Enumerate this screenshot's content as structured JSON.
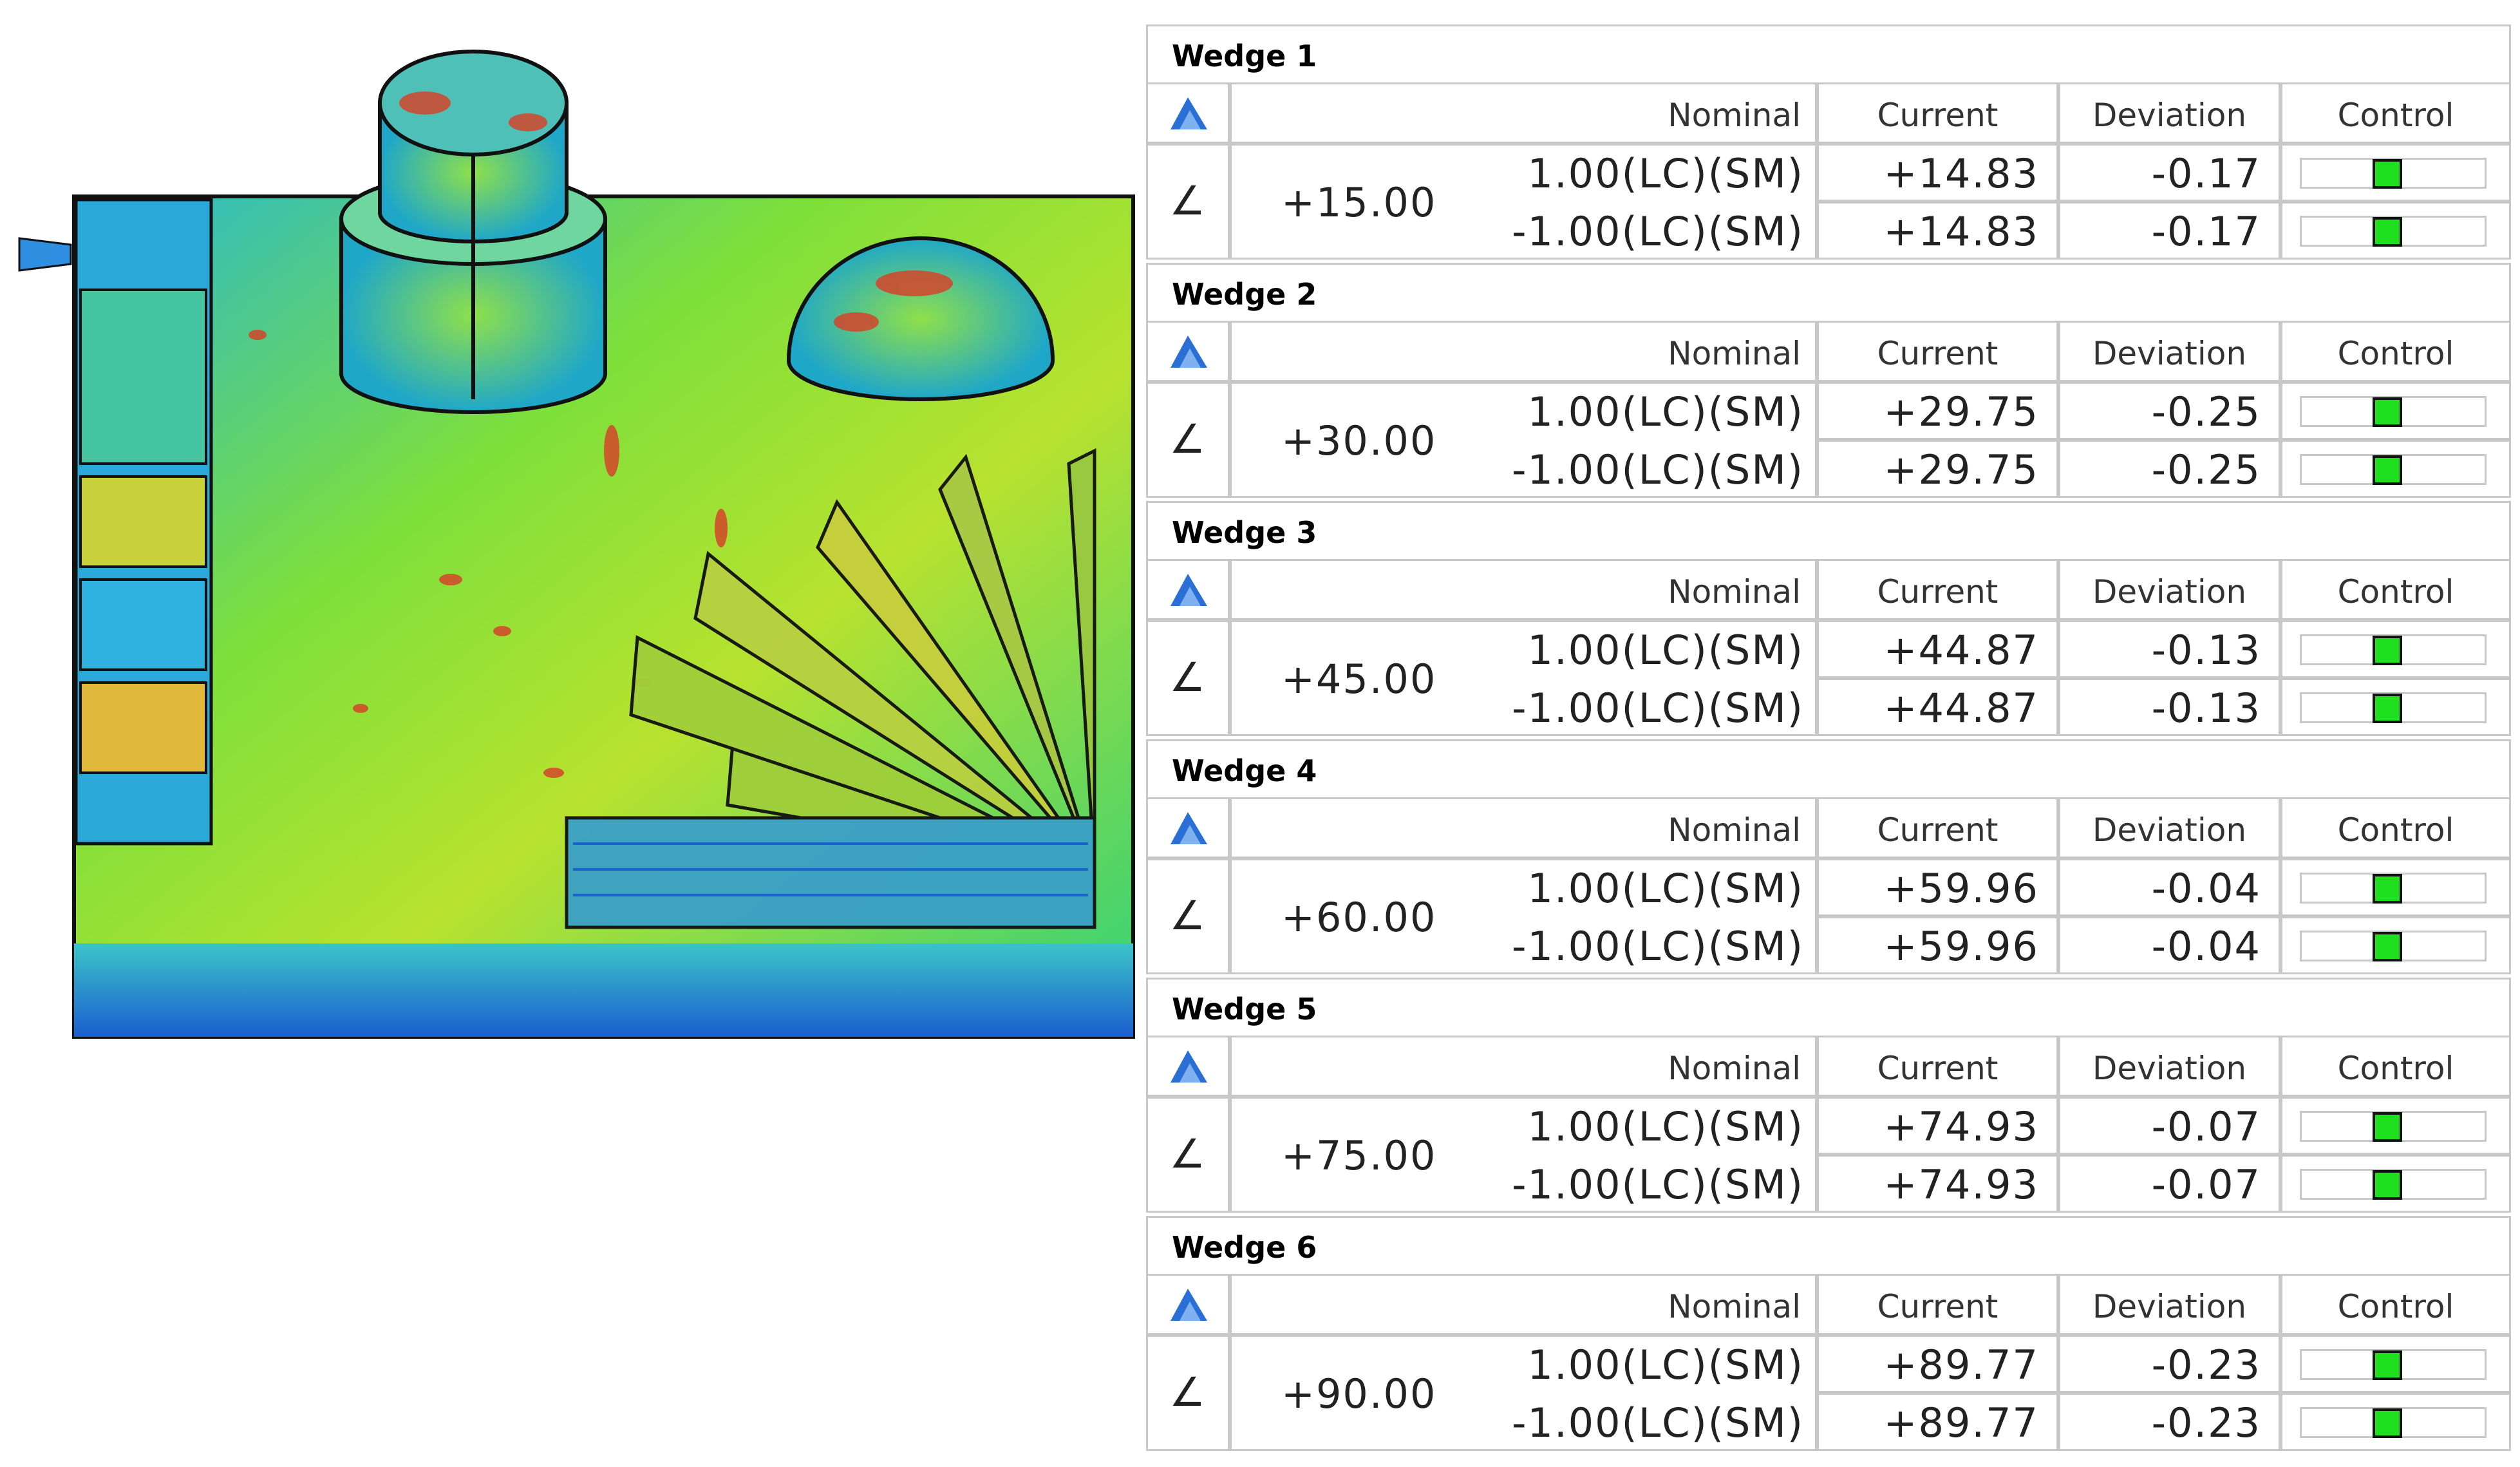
{
  "panels": [
    {
      "title": "Wedge 1",
      "columns": [
        "Nominal",
        "Current",
        "Deviation",
        "Control"
      ],
      "symbol": "∠",
      "nominal": "+15.00",
      "rows": [
        {
          "tolerance": "1.00(LC)(SM)",
          "current": "+14.83",
          "deviation": "-0.17"
        },
        {
          "tolerance": "-1.00(LC)(SM)",
          "current": "+14.83",
          "deviation": "-0.17"
        }
      ]
    },
    {
      "title": "Wedge 2",
      "columns": [
        "Nominal",
        "Current",
        "Deviation",
        "Control"
      ],
      "symbol": "∠",
      "nominal": "+30.00",
      "rows": [
        {
          "tolerance": "1.00(LC)(SM)",
          "current": "+29.75",
          "deviation": "-0.25"
        },
        {
          "tolerance": "-1.00(LC)(SM)",
          "current": "+29.75",
          "deviation": "-0.25"
        }
      ]
    },
    {
      "title": "Wedge 3",
      "columns": [
        "Nominal",
        "Current",
        "Deviation",
        "Control"
      ],
      "symbol": "∠",
      "nominal": "+45.00",
      "rows": [
        {
          "tolerance": "1.00(LC)(SM)",
          "current": "+44.87",
          "deviation": "-0.13"
        },
        {
          "tolerance": "-1.00(LC)(SM)",
          "current": "+44.87",
          "deviation": "-0.13"
        }
      ]
    },
    {
      "title": "Wedge 4",
      "columns": [
        "Nominal",
        "Current",
        "Deviation",
        "Control"
      ],
      "symbol": "∠",
      "nominal": "+60.00",
      "rows": [
        {
          "tolerance": "1.00(LC)(SM)",
          "current": "+59.96",
          "deviation": "-0.04"
        },
        {
          "tolerance": "-1.00(LC)(SM)",
          "current": "+59.96",
          "deviation": "-0.04"
        }
      ]
    },
    {
      "title": "Wedge 5",
      "columns": [
        "Nominal",
        "Current",
        "Deviation",
        "Control"
      ],
      "symbol": "∠",
      "nominal": "+75.00",
      "rows": [
        {
          "tolerance": "1.00(LC)(SM)",
          "current": "+74.93",
          "deviation": "-0.07"
        },
        {
          "tolerance": "-1.00(LC)(SM)",
          "current": "+74.93",
          "deviation": "-0.07"
        }
      ]
    },
    {
      "title": "Wedge 6",
      "columns": [
        "Nominal",
        "Current",
        "Deviation",
        "Control"
      ],
      "symbol": "∠",
      "nominal": "+90.00",
      "rows": [
        {
          "tolerance": "1.00(LC)(SM)",
          "current": "+89.77",
          "deviation": "-0.23"
        },
        {
          "tolerance": "-1.00(LC)(SM)",
          "current": "+89.77",
          "deviation": "-0.23"
        }
      ]
    }
  ]
}
